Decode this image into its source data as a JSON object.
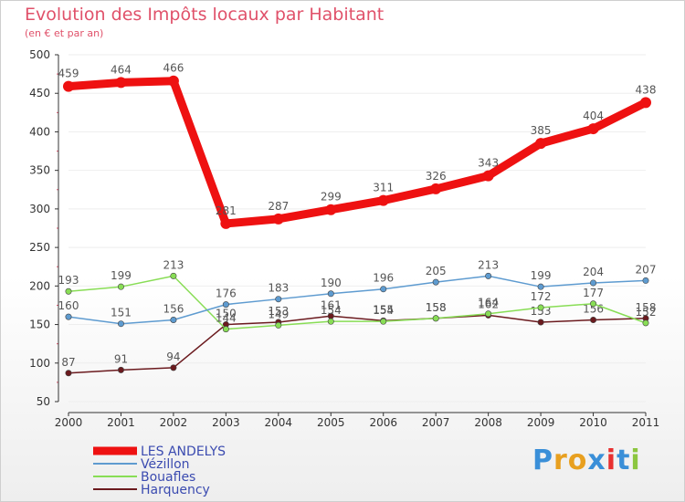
{
  "header": {
    "title": "Evolution des Impôts locaux par Habitant",
    "subtitle": "(en € et par an)"
  },
  "logo": {
    "letters": [
      "P",
      "r",
      "o",
      "x",
      "i",
      "t",
      "i"
    ],
    "colors": [
      "#3a8fd8",
      "#e8a020",
      "#e8a020",
      "#3a8fd8",
      "#e83030",
      "#3a8fd8",
      "#8cc63f"
    ]
  },
  "chart_data": {
    "type": "line",
    "title": "Evolution des Impôts locaux par Habitant",
    "subtitle": "(en € et par an)",
    "xlabel": "",
    "ylabel": "",
    "ylim": [
      50,
      500
    ],
    "yticks": [
      50,
      100,
      150,
      200,
      250,
      300,
      350,
      400,
      450,
      500
    ],
    "categories": [
      "2000",
      "2001",
      "2002",
      "2003",
      "2004",
      "2005",
      "2006",
      "2007",
      "2008",
      "2009",
      "2010",
      "2011"
    ],
    "legend_position": "bottom-left",
    "series": [
      {
        "name": "Harquency",
        "color": "#6b1a1e",
        "values": [
          87,
          91,
          94,
          150,
          153,
          161,
          155,
          158,
          162,
          153,
          156,
          158
        ]
      },
      {
        "name": "Bouafles",
        "color": "#88dd55",
        "values": [
          193,
          199,
          213,
          144,
          149,
          154,
          154,
          158,
          164,
          172,
          177,
          152
        ]
      },
      {
        "name": "Vézillon",
        "color": "#5e9bd0",
        "values": [
          160,
          151,
          156,
          176,
          183,
          190,
          196,
          205,
          213,
          199,
          204,
          207
        ]
      },
      {
        "name": "LES ANDELYS",
        "color": "#ee1111",
        "values": [
          459,
          464,
          466,
          281,
          287,
          299,
          311,
          326,
          343,
          385,
          404,
          438
        ]
      }
    ],
    "legend_order": [
      "LES ANDELYS",
      "Vézillon",
      "Bouafles",
      "Harquency"
    ]
  }
}
